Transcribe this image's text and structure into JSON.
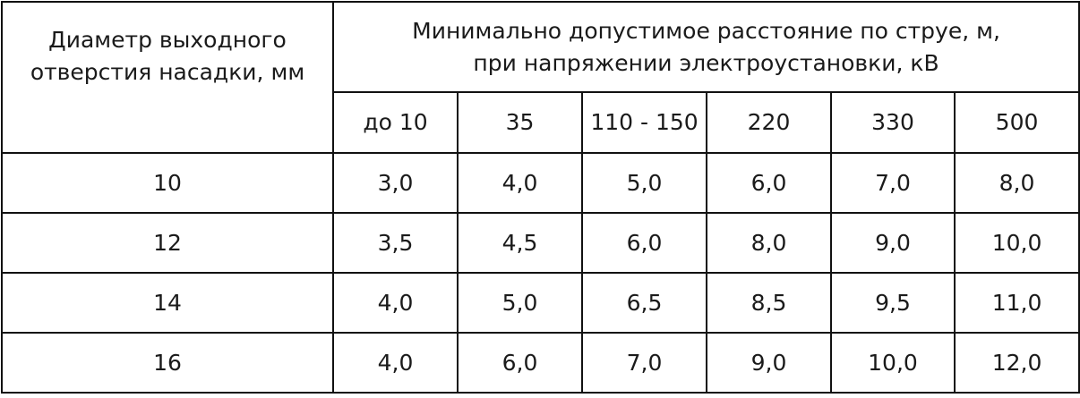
{
  "table": {
    "corner_header": "Диаметр выходного отверстия насадки, мм",
    "group_header": "Минимально допустимое расстояние по струе, м, при напряжении электроустановки, кВ",
    "voltage_columns": [
      "до 10",
      "35",
      "110 - 150",
      "220",
      "330",
      "500"
    ],
    "rows": [
      {
        "diameter": "10",
        "values": [
          "3,0",
          "4,0",
          "5,0",
          "6,0",
          "7,0",
          "8,0"
        ]
      },
      {
        "diameter": "12",
        "values": [
          "3,5",
          "4,5",
          "6,0",
          "8,0",
          "9,0",
          "10,0"
        ]
      },
      {
        "diameter": "14",
        "values": [
          "4,0",
          "5,0",
          "6,5",
          "8,5",
          "9,5",
          "11,0"
        ]
      },
      {
        "diameter": "16",
        "values": [
          "4,0",
          "6,0",
          "7,0",
          "9,0",
          "10,0",
          "12,0"
        ]
      }
    ]
  }
}
